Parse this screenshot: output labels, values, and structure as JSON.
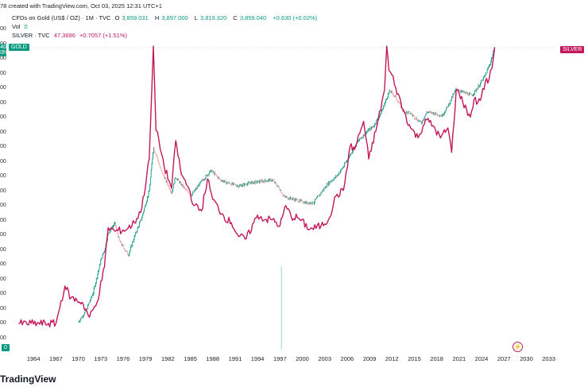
{
  "header": {
    "source_line": "78 created with TradingView.com, Oct 03, 2025 12:31 UTC+1",
    "gold_symbol": "CFDs on Gold (US$ / OZ) · 1M · TVC",
    "gold_ohlc": [
      {
        "key": "O",
        "value": "3,859.031"
      },
      {
        "key": "H",
        "value": "3,897.000"
      },
      {
        "key": "L",
        "value": "3,819.320"
      },
      {
        "key": "C",
        "value": "3,859.040"
      }
    ],
    "gold_change": "+0.630 (+0.02%)",
    "vol_label": "Vol",
    "vol_value": "0",
    "silver_symbol": "SILVER · TVC",
    "silver_value": "47.3696",
    "silver_change": "+0.7057 (+1.51%)"
  },
  "badges": {
    "gold_price_partial": "40",
    "gold_time_partial": "0h",
    "gold_label": "GOLD",
    "silver_label": "SILVER",
    "bottom_zero": "0"
  },
  "y_ticks_partial": [
    "00",
    "00",
    "00",
    "00",
    "00",
    "00",
    "00",
    "00",
    "00",
    "00",
    "00",
    "00",
    "00",
    "00",
    "00",
    "00",
    "00",
    "00",
    "00",
    "00",
    "00",
    "00"
  ],
  "branding": {
    "logo_text": "TradingView"
  },
  "colors": {
    "gold": "#089981",
    "gold_down": "#f7a9a9",
    "silver": "#c2185b",
    "grid_dash": "#b2b5be"
  },
  "chart_data": {
    "type": "line",
    "title": "",
    "xlabel": "",
    "ylabel": "",
    "x_tick_labels": [
      "1964",
      "1967",
      "1970",
      "1973",
      "1976",
      "1979",
      "1982",
      "1985",
      "1988",
      "1991",
      "1994",
      "1997",
      "2000",
      "2003",
      "2006",
      "2009",
      "2012",
      "2015",
      "2018",
      "2021",
      "2024",
      "2027",
      "2030",
      "2033"
    ],
    "xlim": [
      1961,
      2034
    ],
    "log_scale": true,
    "grid": false,
    "series": [
      {
        "name": "GOLD",
        "style": "candlestick",
        "color": "#089981",
        "x": [
          1970.0,
          1971.0,
          1972.0,
          1973.0,
          1973.5,
          1974.0,
          1974.9,
          1975.5,
          1976.7,
          1977.5,
          1978.5,
          1979.5,
          1980.05,
          1980.5,
          1981.0,
          1982.5,
          1983.0,
          1984.5,
          1985.2,
          1986.5,
          1987.8,
          1989.0,
          1990.0,
          1991.5,
          1993.0,
          1994.5,
          1996.0,
          1997.0,
          1997.5,
          1998.5,
          1999.5,
          2000.5,
          2001.5,
          2002.5,
          2003.5,
          2004.5,
          2005.5,
          2006.5,
          2007.5,
          2008.5,
          2009.5,
          2010.5,
          2011.7,
          2012.5,
          2013.5,
          2014.5,
          2015.9,
          2016.7,
          2017.5,
          2018.7,
          2019.5,
          2020.6,
          2021.5,
          2022.7,
          2023.5,
          2024.5,
          2025.2,
          2025.75
        ],
        "y": [
          35,
          42,
          58,
          100,
          120,
          160,
          190,
          140,
          110,
          150,
          210,
          330,
          700,
          600,
          480,
          320,
          420,
          330,
          310,
          390,
          470,
          400,
          380,
          360,
          380,
          390,
          400,
          340,
          300,
          290,
          280,
          270,
          270,
          320,
          380,
          420,
          500,
          630,
          780,
          900,
          1000,
          1250,
          1850,
          1650,
          1300,
          1250,
          1060,
          1280,
          1260,
          1200,
          1420,
          1900,
          1800,
          1700,
          1950,
          2400,
          3000,
          3860
        ]
      },
      {
        "name": "SILVER",
        "style": "line",
        "color": "#c2185b",
        "x": [
          1962.0,
          1967.0,
          1968.2,
          1969.0,
          1970.5,
          1971.5,
          1972.5,
          1973.5,
          1974.0,
          1975.0,
          1976.5,
          1977.5,
          1978.5,
          1979.5,
          1980.05,
          1980.4,
          1980.8,
          1981.5,
          1982.5,
          1983.05,
          1983.8,
          1984.8,
          1985.5,
          1986.5,
          1987.3,
          1988.0,
          1989.5,
          1990.5,
          1991.5,
          1992.5,
          1994.0,
          1995.0,
          1996.0,
          1997.0,
          1997.8,
          1998.5,
          1999.5,
          2001.0,
          2002.5,
          2003.5,
          2004.5,
          2005.5,
          2006.4,
          2007.0,
          2008.2,
          2008.9,
          2010.0,
          2011.0,
          2011.3,
          2011.6,
          2012.0,
          2012.5,
          2013.5,
          2014.5,
          2015.5,
          2016.5,
          2017.5,
          2018.5,
          2019.5,
          2020.0,
          2020.6,
          2021.0,
          2021.5,
          2022.5,
          2023.0,
          2023.5,
          2024.0,
          2024.5,
          2025.0,
          2025.4,
          2025.75
        ],
        "y": [
          1.29,
          1.29,
          2.1,
          1.8,
          1.7,
          1.4,
          1.7,
          2.7,
          4.5,
          4.3,
          4.4,
          4.8,
          5.8,
          11.0,
          48.0,
          16.0,
          14.0,
          10.0,
          7.5,
          14.0,
          9.0,
          7.5,
          6.0,
          5.6,
          8.5,
          6.5,
          5.2,
          4.8,
          4.0,
          3.9,
          5.3,
          5.0,
          5.0,
          4.6,
          6.0,
          5.2,
          5.1,
          4.4,
          4.6,
          5.0,
          6.8,
          7.3,
          13.0,
          12.5,
          18.0,
          11.0,
          17.0,
          27.0,
          48.0,
          35.0,
          33.0,
          28.0,
          21.0,
          16.5,
          14.5,
          18.5,
          17.0,
          14.5,
          16.5,
          12.0,
          27.0,
          26.0,
          23.0,
          19.0,
          24.0,
          23.0,
          25.0,
          30.0,
          31.0,
          36.0,
          47.37
        ]
      }
    ]
  }
}
